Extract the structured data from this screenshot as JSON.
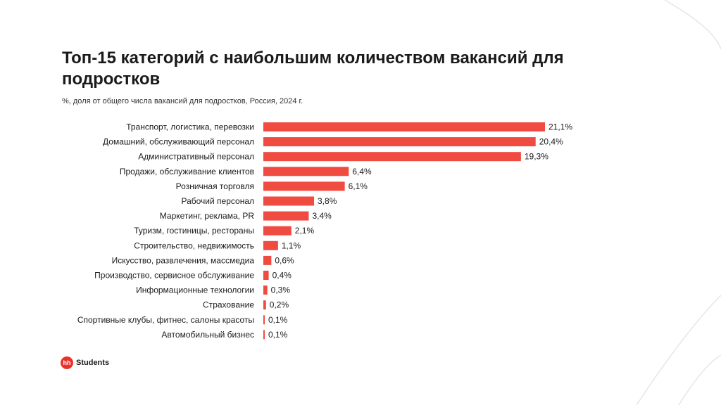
{
  "title": "Топ-15 категорий с наибольшим количеством вакансий для подростков",
  "subtitle": "%, доля от общего числа вакансий для подростков, Россия, 2024 г.",
  "brand": {
    "badge": "hh",
    "name": "Students"
  },
  "colors": {
    "bar": "#f04b40",
    "brand": "#e8332a"
  },
  "chart_data": {
    "type": "bar",
    "orientation": "horizontal",
    "categories": [
      "Транспорт, логистика, перевозки",
      "Домашний, обслуживающий персонал",
      "Административный персонал",
      "Продажи, обслуживание клиентов",
      "Розничная торговля",
      "Рабочий персонал",
      "Маркетинг, реклама, PR",
      "Туризм, гостиницы, рестораны",
      "Строительство, недвижимость",
      "Искусство, развлечения, массмедиа",
      "Производство, сервисное обслуживание",
      "Информационные технологии",
      "Страхование",
      "Спортивные клубы, фитнес, салоны красоты",
      "Автомобильный бизнес"
    ],
    "values": [
      21.1,
      20.4,
      19.3,
      6.4,
      6.1,
      3.8,
      3.4,
      2.1,
      1.1,
      0.6,
      0.4,
      0.3,
      0.2,
      0.1,
      0.1
    ],
    "value_labels": [
      "21,1%",
      "20,4%",
      "19,3%",
      "6,4%",
      "6,1%",
      "3,8%",
      "3,4%",
      "2,1%",
      "1,1%",
      "0,6%",
      "0,4%",
      "0,3%",
      "0,2%",
      "0,1%",
      "0,1%"
    ],
    "xlim": [
      0,
      21.1
    ],
    "grid": false,
    "legend": "none"
  }
}
